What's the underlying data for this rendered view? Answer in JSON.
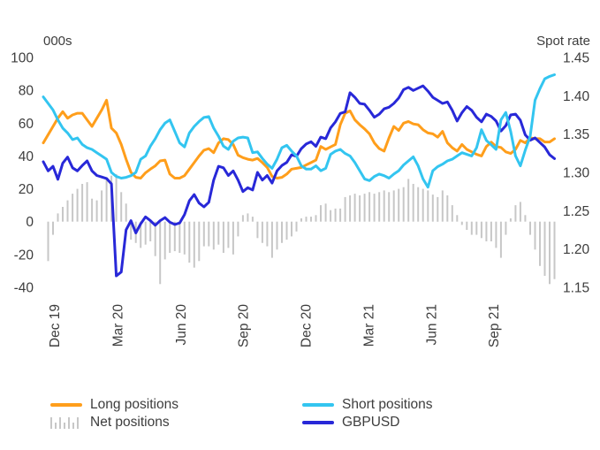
{
  "chart_data": {
    "type": "combo",
    "title": "",
    "x_unit": "weekly, Dec 2019 - Nov 2021",
    "grid": false,
    "legend_position": "bottom",
    "x_ticks": [
      {
        "label": "Dec 19",
        "pos": 2.4
      },
      {
        "label": "Mar 20",
        "pos": 15.3
      },
      {
        "label": "Jun 20",
        "pos": 28.3
      },
      {
        "label": "Sep 20",
        "pos": 41.1
      },
      {
        "label": "Dec 20",
        "pos": 54.0
      },
      {
        "label": "Mar 21",
        "pos": 66.9
      },
      {
        "label": "Jun 21",
        "pos": 79.8
      },
      {
        "label": "Sep 21",
        "pos": 92.6
      }
    ],
    "left_axis": {
      "title": "000s",
      "min": -40,
      "max": 100,
      "ticks": [
        100,
        80,
        60,
        40,
        20,
        0,
        -20,
        -40
      ],
      "tick_labels": [
        "100",
        "80",
        "60",
        "40",
        "20",
        "0",
        "-20",
        "-40"
      ]
    },
    "right_axis": {
      "title": "Spot rate",
      "min": 1.15,
      "max": 1.45,
      "ticks": [
        1.45,
        1.4,
        1.35,
        1.3,
        1.25,
        1.2,
        1.15
      ],
      "tick_labels": [
        "1.45",
        "1.40",
        "1.35",
        "1.30",
        "1.25",
        "1.20",
        "1.15"
      ]
    },
    "text_color": "#3d3d3d",
    "series": [
      {
        "name": "Long positions",
        "type": "line",
        "axis": "left",
        "color": "#FF9E1B",
        "values": [
          48,
          53,
          58,
          63,
          67,
          63,
          65,
          66,
          66,
          62,
          58,
          63,
          68,
          74,
          57,
          54,
          47,
          38,
          30,
          27,
          26.5,
          29.8,
          32,
          34,
          37,
          37.5,
          29,
          26.5,
          26.5,
          28,
          32,
          36,
          40,
          43.5,
          44.5,
          42,
          48,
          50.5,
          50,
          47,
          40.5,
          39,
          38,
          37.5,
          38.5,
          36,
          33,
          27.5,
          26.5,
          27,
          29,
          32,
          32.5,
          33,
          34.5,
          36,
          37.5,
          45.8,
          44,
          45.5,
          47,
          59,
          66,
          67.5,
          62,
          59,
          56.5,
          53.5,
          48,
          44.5,
          43,
          51,
          58,
          55.5,
          60,
          61,
          59.5,
          59,
          56,
          54,
          53.5,
          51.5,
          55,
          48,
          45,
          43,
          47,
          44,
          42.5,
          41,
          40,
          45.8,
          48.4,
          45.8,
          45.2,
          42.5,
          41.5,
          44,
          49.5,
          48,
          51,
          50.5,
          50.5,
          48.5,
          48.5,
          50.5
        ]
      },
      {
        "name": "Short positions",
        "type": "line",
        "axis": "left",
        "color": "#33C5F0",
        "values": [
          76,
          72,
          68,
          62,
          57,
          54,
          50,
          51,
          47,
          45,
          44,
          42,
          40,
          38,
          30,
          27.5,
          26.5,
          27,
          28,
          30,
          38,
          40,
          46,
          50.5,
          56,
          60,
          62,
          55,
          48,
          45.5,
          54,
          58,
          61,
          63.5,
          64,
          57,
          52,
          46,
          44,
          49,
          51,
          51.5,
          51,
          42,
          42.5,
          38.5,
          35,
          32.5,
          38,
          45,
          46.5,
          43,
          40,
          34,
          32,
          32,
          34,
          31,
          32.5,
          41,
          43,
          44,
          41.5,
          40,
          36,
          31,
          26,
          25,
          27.5,
          29,
          28,
          26.5,
          29,
          31,
          34.5,
          37,
          39.5,
          34,
          26,
          21,
          31,
          33.5,
          35,
          37,
          38,
          40,
          42,
          41,
          40,
          45,
          56,
          49.5,
          46.8,
          44,
          62,
          66.5,
          55,
          40,
          34,
          43.5,
          52,
          74,
          81,
          87,
          88.5,
          89.5
        ]
      },
      {
        "name": "Net positions",
        "type": "bar",
        "axis": "left",
        "color": "#C7C7C7",
        "values": [
          0,
          -24,
          -8,
          5,
          9,
          13,
          17,
          20,
          23,
          24,
          14,
          13,
          19,
          26,
          28,
          29,
          18,
          11,
          -11,
          -13,
          -16,
          -14,
          -12,
          -21,
          -38,
          -23,
          -19,
          -18,
          -19,
          -20,
          -25,
          -28,
          -24,
          -15,
          -15,
          -17,
          -14,
          -19,
          -16,
          -20,
          -9,
          4,
          5,
          3,
          -10,
          -13,
          -15,
          -22,
          -17,
          -13,
          -11,
          -9,
          -6,
          2,
          3,
          3,
          4,
          10,
          11,
          7,
          8,
          8,
          15,
          16,
          17,
          16,
          17,
          18,
          17,
          18,
          19,
          18,
          19,
          20,
          21,
          26,
          23,
          21,
          20,
          19,
          16.5,
          15,
          19,
          16,
          10,
          4,
          -2,
          -5,
          -8,
          -8,
          -10,
          -12,
          -12,
          -16,
          -22,
          -8,
          2,
          10,
          12,
          4,
          -8,
          -17,
          -27,
          -33,
          -38,
          -35
        ]
      },
      {
        "name": "GBPUSD",
        "type": "line",
        "axis": "right",
        "color": "#2828D8",
        "values": [
          1.314,
          1.302,
          1.308,
          1.291,
          1.312,
          1.32,
          1.306,
          1.302,
          1.309,
          1.315,
          1.302,
          1.296,
          1.294,
          1.292,
          1.285,
          1.165,
          1.17,
          1.225,
          1.237,
          1.221,
          1.233,
          1.242,
          1.237,
          1.231,
          1.237,
          1.241,
          1.235,
          1.232,
          1.234,
          1.245,
          1.263,
          1.271,
          1.26,
          1.255,
          1.261,
          1.29,
          1.308,
          1.306,
          1.296,
          1.302,
          1.29,
          1.275,
          1.28,
          1.277,
          1.3,
          1.29,
          1.296,
          1.286,
          1.302,
          1.309,
          1.313,
          1.323,
          1.321,
          1.331,
          1.337,
          1.34,
          1.334,
          1.346,
          1.344,
          1.358,
          1.366,
          1.377,
          1.379,
          1.404,
          1.398,
          1.39,
          1.389,
          1.381,
          1.372,
          1.376,
          1.383,
          1.385,
          1.39,
          1.397,
          1.408,
          1.411,
          1.407,
          1.41,
          1.413,
          1.406,
          1.398,
          1.394,
          1.39,
          1.392,
          1.381,
          1.367,
          1.378,
          1.386,
          1.381,
          1.372,
          1.366,
          1.376,
          1.373,
          1.367,
          1.354,
          1.361,
          1.375,
          1.376,
          1.368,
          1.349,
          1.342,
          1.345,
          1.339,
          1.333,
          1.323,
          1.318
        ]
      }
    ]
  }
}
